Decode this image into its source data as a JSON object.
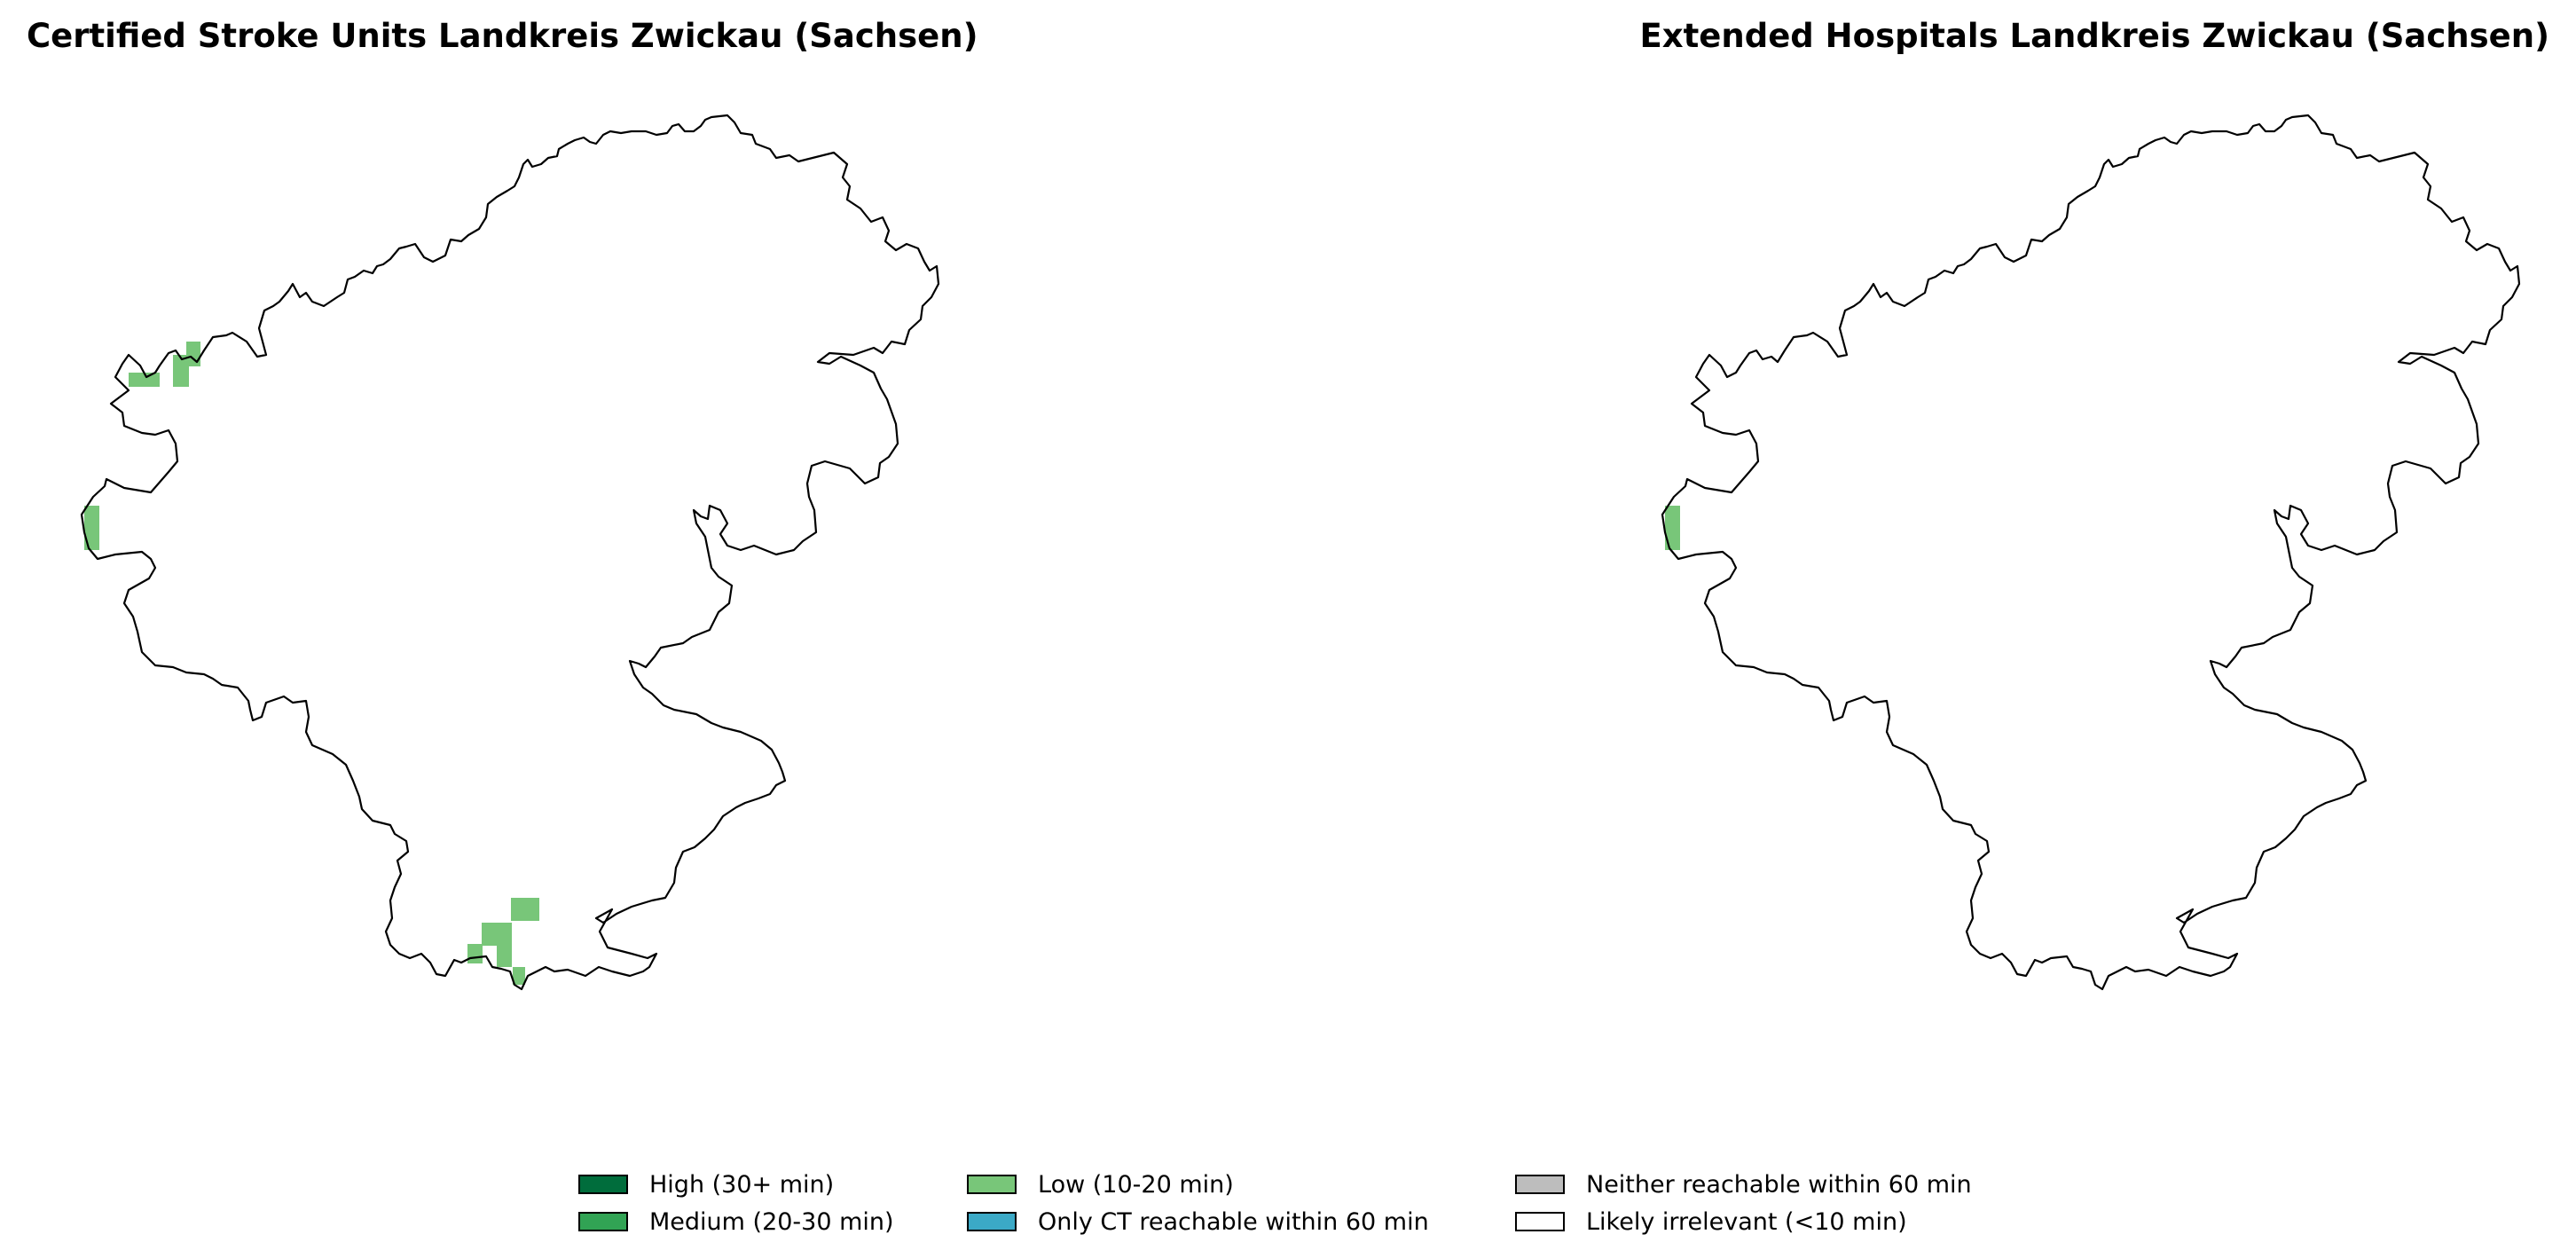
{
  "maps": [
    {
      "title": "Certified Stroke Units Landkreis Zwickau (Sachsen)"
    },
    {
      "title": "Extended Hospitals Landkreis Zwickau (Sachsen)"
    }
  ],
  "legend": [
    {
      "label": "High (30+ min)",
      "color": "#006d3c"
    },
    {
      "label": "Medium (20-30 min)",
      "color": "#31a354"
    },
    {
      "label": "Low (10-20 min)",
      "color": "#78c679"
    },
    {
      "label": "Only CT reachable within 60 min",
      "color": "#3ba9c6"
    },
    {
      "label": "Neither reachable within 60 min",
      "color": "#bdbdbd"
    },
    {
      "label": "Likely irrelevant (<10 min)",
      "color": "#ffffff"
    }
  ],
  "colors": {
    "outline": "#000000",
    "low_fill": "#78c679"
  }
}
